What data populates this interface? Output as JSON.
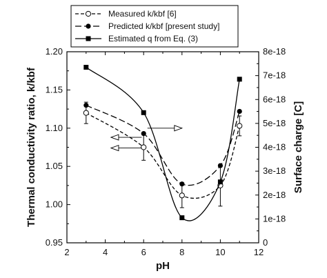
{
  "chart_data": {
    "type": "line",
    "xlabel": "pH",
    "ylabel_left": "Thermal conductivity ratio, k/kbf",
    "ylabel_right": "Surface charge [C]",
    "xlim": [
      2,
      12
    ],
    "ylim_left": [
      0.95,
      1.2
    ],
    "ylim_right": [
      0,
      8e-18
    ],
    "x_ticks": [
      "2",
      "4",
      "6",
      "8",
      "10",
      "12"
    ],
    "y_left_ticks": [
      "0.95",
      "1.00",
      "1.05",
      "1.10",
      "1.15",
      "1.20"
    ],
    "y_right_ticks": [
      "0",
      "1e-18",
      "2e-18",
      "3e-18",
      "4e-18",
      "5e-18",
      "6e-18",
      "7e-18",
      "8e-18"
    ],
    "grid": false,
    "legend_position": "top",
    "series": [
      {
        "name": "Measured k/kbf [6]",
        "axis": "left",
        "marker": "open-circle",
        "line": "short-dash",
        "color": "#000000",
        "x": [
          3,
          6,
          8,
          10,
          11
        ],
        "y": [
          1.12,
          1.075,
          1.012,
          1.025,
          1.103
        ],
        "y_err": [
          0.014,
          0.017,
          0.016,
          0.027,
          0.013
        ]
      },
      {
        "name": "Predicted k/kbf [present study]",
        "axis": "left",
        "marker": "filled-circle",
        "line": "long-dash",
        "color": "#000000",
        "x": [
          3,
          6,
          8,
          10,
          11
        ],
        "y": [
          1.13,
          1.093,
          1.027,
          1.051,
          1.122
        ]
      },
      {
        "name": "Estimated q from Eq. (3)",
        "axis": "right",
        "marker": "filled-square",
        "line": "solid",
        "color": "#000000",
        "x": [
          3,
          6,
          8,
          10,
          11
        ],
        "y": [
          7.35e-18,
          5.45e-18,
          1.05e-18,
          2.55e-18,
          6.85e-18
        ]
      }
    ],
    "annotations": [
      {
        "type": "arrow",
        "direction": "right",
        "from": [
          6.2,
          1.1
        ],
        "to": [
          8.0,
          1.1
        ]
      },
      {
        "type": "arrow",
        "direction": "left",
        "from": [
          5.9,
          1.088
        ],
        "to": [
          4.3,
          1.088
        ]
      },
      {
        "type": "arrow",
        "direction": "left",
        "from": [
          5.9,
          1.074
        ],
        "to": [
          4.3,
          1.074
        ]
      }
    ]
  }
}
